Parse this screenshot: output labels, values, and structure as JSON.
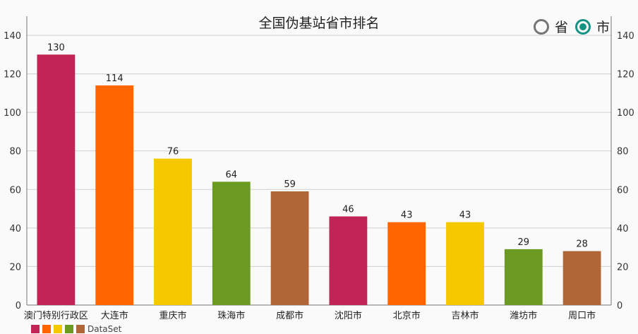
{
  "title": "全国伪基站省市排名",
  "toggle": {
    "options": [
      {
        "label": "省",
        "checked": false
      },
      {
        "label": "市",
        "checked": true
      }
    ]
  },
  "legend": {
    "label": "DataSet"
  },
  "chart_data": {
    "type": "bar",
    "title": "全国伪基站省市排名",
    "categories": [
      "澳门特别行政区",
      "大连市",
      "重庆市",
      "珠海市",
      "成都市",
      "沈阳市",
      "北京市",
      "吉林市",
      "潍坊市",
      "周口市"
    ],
    "values": [
      130,
      114,
      76,
      64,
      59,
      46,
      43,
      43,
      29,
      28
    ],
    "colors": [
      "#c22555",
      "#ff6600",
      "#f5c800",
      "#6b9a22",
      "#b06636",
      "#c22555",
      "#ff6600",
      "#f5c800",
      "#6b9a22",
      "#b06636"
    ],
    "ylim": [
      0,
      140
    ],
    "yticks": [
      0,
      20,
      40,
      60,
      80,
      100,
      120,
      140
    ],
    "y_axis_both_sides": true,
    "grid": true,
    "data_labels": true
  }
}
